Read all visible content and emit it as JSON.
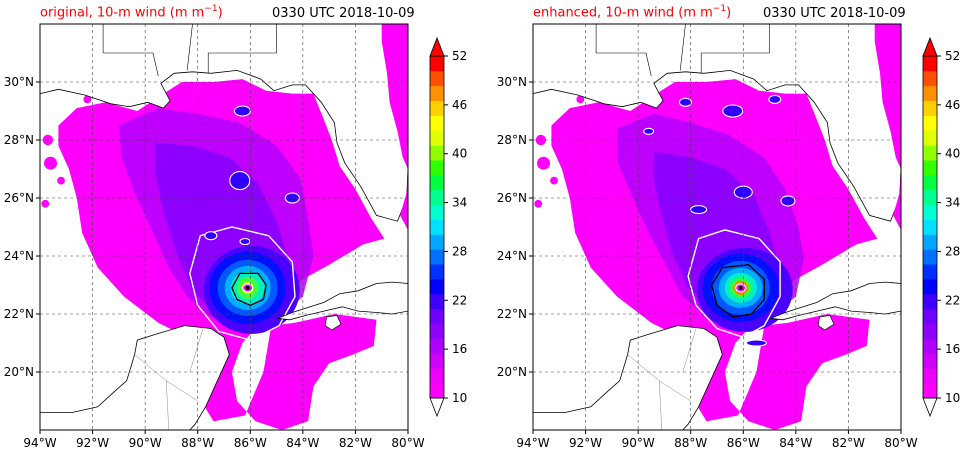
{
  "panels": [
    {
      "id": "original",
      "title": "original, 10-m wind (m m",
      "title_exp": "−1",
      "title_suffix": ")",
      "time": "0330 UTC 2018-10-09"
    },
    {
      "id": "enhanced",
      "title": "enhanced, 10-m wind (m m",
      "title_exp": "−1",
      "title_suffix": ")",
      "time": "0330 UTC 2018-10-09"
    }
  ],
  "map": {
    "lon_range": [
      -94,
      -80
    ],
    "lat_range": [
      18,
      32
    ],
    "lon_ticks": [
      "94°W",
      "92°W",
      "90°W",
      "88°W",
      "86°W",
      "84°W",
      "82°W",
      "80°W"
    ],
    "lat_ticks": [
      "20°N",
      "22°N",
      "24°N",
      "26°N",
      "28°N",
      "30°N"
    ],
    "grid": true
  },
  "colorbar": {
    "tick_labels": [
      "10",
      "16",
      "22",
      "28",
      "34",
      "40",
      "46",
      "52"
    ],
    "colors": [
      "#ff00ff",
      "#ee00ff",
      "#d000ff",
      "#b000ff",
      "#9000ff",
      "#7000ff",
      "#4000ff",
      "#0000ff",
      "#0030ff",
      "#0070ff",
      "#00a8ff",
      "#00e0ff",
      "#00ffd0",
      "#00ff90",
      "#00ff40",
      "#30ff00",
      "#90ff00",
      "#e0ff00",
      "#ffff00",
      "#ffd000",
      "#ff9000",
      "#ff5000",
      "#ff0000"
    ],
    "extend": "both"
  }
}
